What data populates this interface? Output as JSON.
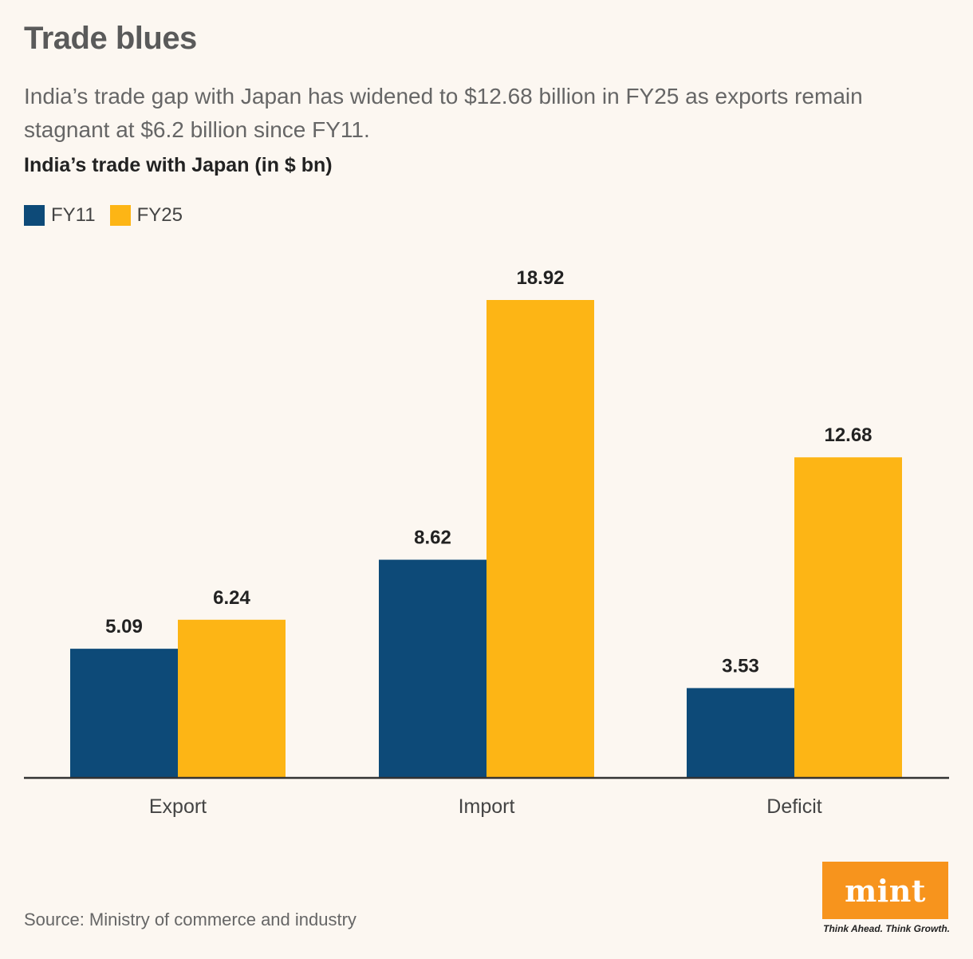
{
  "header": {
    "title": "Trade blues",
    "subtitle": "India’s trade gap with Japan has widened to $12.68 billion in FY25 as exports remain stagnant at $6.2 billion since FY11."
  },
  "legend": {
    "items": [
      {
        "label": "FY11",
        "color": "#0d4a78"
      },
      {
        "label": "FY25",
        "color": "#fdb515"
      }
    ]
  },
  "chart_data": {
    "type": "bar",
    "title": "India’s trade with Japan (in $ bn)",
    "categories": [
      "Export",
      "Import",
      "Deficit"
    ],
    "series": [
      {
        "name": "FY11",
        "values": [
          5.09,
          8.62,
          3.53
        ],
        "labels": [
          "5.09",
          "8.62",
          "3.53"
        ],
        "color": "#0d4a78"
      },
      {
        "name": "FY25",
        "values": [
          6.24,
          18.92,
          12.68
        ],
        "labels": [
          "6.24",
          "18.92",
          "12.68"
        ],
        "color": "#fdb515"
      }
    ],
    "xlabel": "",
    "ylabel": "",
    "ylim": [
      0,
      20
    ],
    "grid": false,
    "legend_position": "top-left"
  },
  "footer": {
    "source": "Source: Ministry of commerce and industry",
    "logo_text": "mint",
    "tagline": "Think Ahead. Think Growth."
  }
}
